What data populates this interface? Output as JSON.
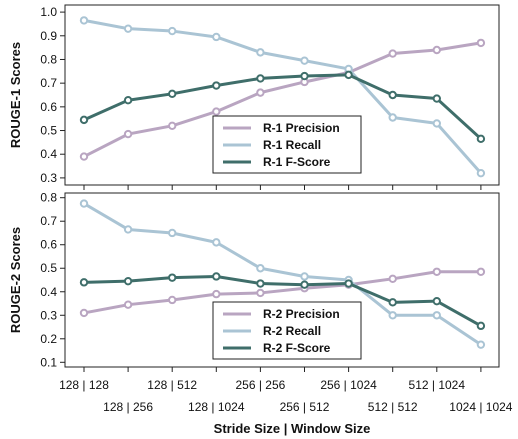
{
  "chart_data": [
    {
      "type": "line",
      "ylabel": "ROUGE-1 Scores",
      "ylim": [
        0.27,
        1.03
      ],
      "yticks": [
        "1.0",
        "0.9",
        "0.8",
        "0.7",
        "0.6",
        "0.5",
        "0.4",
        "0.3"
      ],
      "legend_position": "bottom-center",
      "categories": [
        "128 | 128",
        "128 | 256",
        "128 | 512",
        "128 | 1024",
        "256 | 256",
        "256 | 512",
        "256 | 1024",
        "512 | 512",
        "512 | 1024",
        "1024 | 1024"
      ],
      "series": [
        {
          "name": "R-1 Precision",
          "color": "#b9a5c1",
          "values": [
            0.39,
            0.485,
            0.52,
            0.58,
            0.66,
            0.705,
            0.745,
            0.825,
            0.84,
            0.87
          ]
        },
        {
          "name": "R-1 Recall",
          "color": "#aac4d4",
          "values": [
            0.965,
            0.93,
            0.92,
            0.895,
            0.83,
            0.795,
            0.76,
            0.555,
            0.53,
            0.32
          ]
        },
        {
          "name": "R-1 F-Score",
          "color": "#3f6e6a",
          "values": [
            0.545,
            0.628,
            0.655,
            0.69,
            0.72,
            0.73,
            0.735,
            0.65,
            0.635,
            0.465
          ]
        }
      ]
    },
    {
      "type": "line",
      "ylabel": "ROUGE-2 Scores",
      "ylim": [
        0.08,
        0.82
      ],
      "yticks": [
        "0.8",
        "0.7",
        "0.6",
        "0.5",
        "0.4",
        "0.3",
        "0.2",
        "0.1"
      ],
      "legend_position": "bottom-center",
      "categories": [
        "128 | 128",
        "128 | 256",
        "128 | 512",
        "128 | 1024",
        "256 | 256",
        "256 | 512",
        "256 | 1024",
        "512 | 512",
        "512 | 1024",
        "1024 | 1024"
      ],
      "series": [
        {
          "name": "R-2 Precision",
          "color": "#b9a5c1",
          "values": [
            0.31,
            0.345,
            0.365,
            0.39,
            0.395,
            0.415,
            0.43,
            0.455,
            0.485,
            0.485
          ]
        },
        {
          "name": "R-2 Recall",
          "color": "#aac4d4",
          "values": [
            0.775,
            0.665,
            0.65,
            0.61,
            0.5,
            0.465,
            0.45,
            0.3,
            0.3,
            0.175
          ]
        },
        {
          "name": "R-2 F-Score",
          "color": "#3f6e6a",
          "values": [
            0.44,
            0.445,
            0.46,
            0.465,
            0.435,
            0.43,
            0.435,
            0.355,
            0.36,
            0.255
          ]
        }
      ]
    }
  ],
  "xlabel": "Stride Size  |  Window Size",
  "xtick_labels": [
    "128 | 128",
    "128 | 256",
    "128 | 512",
    "128 | 1024",
    "256 | 256",
    "256 | 512",
    "256 | 1024",
    "512 | 512",
    "512 | 1024",
    "1024 | 1024"
  ]
}
